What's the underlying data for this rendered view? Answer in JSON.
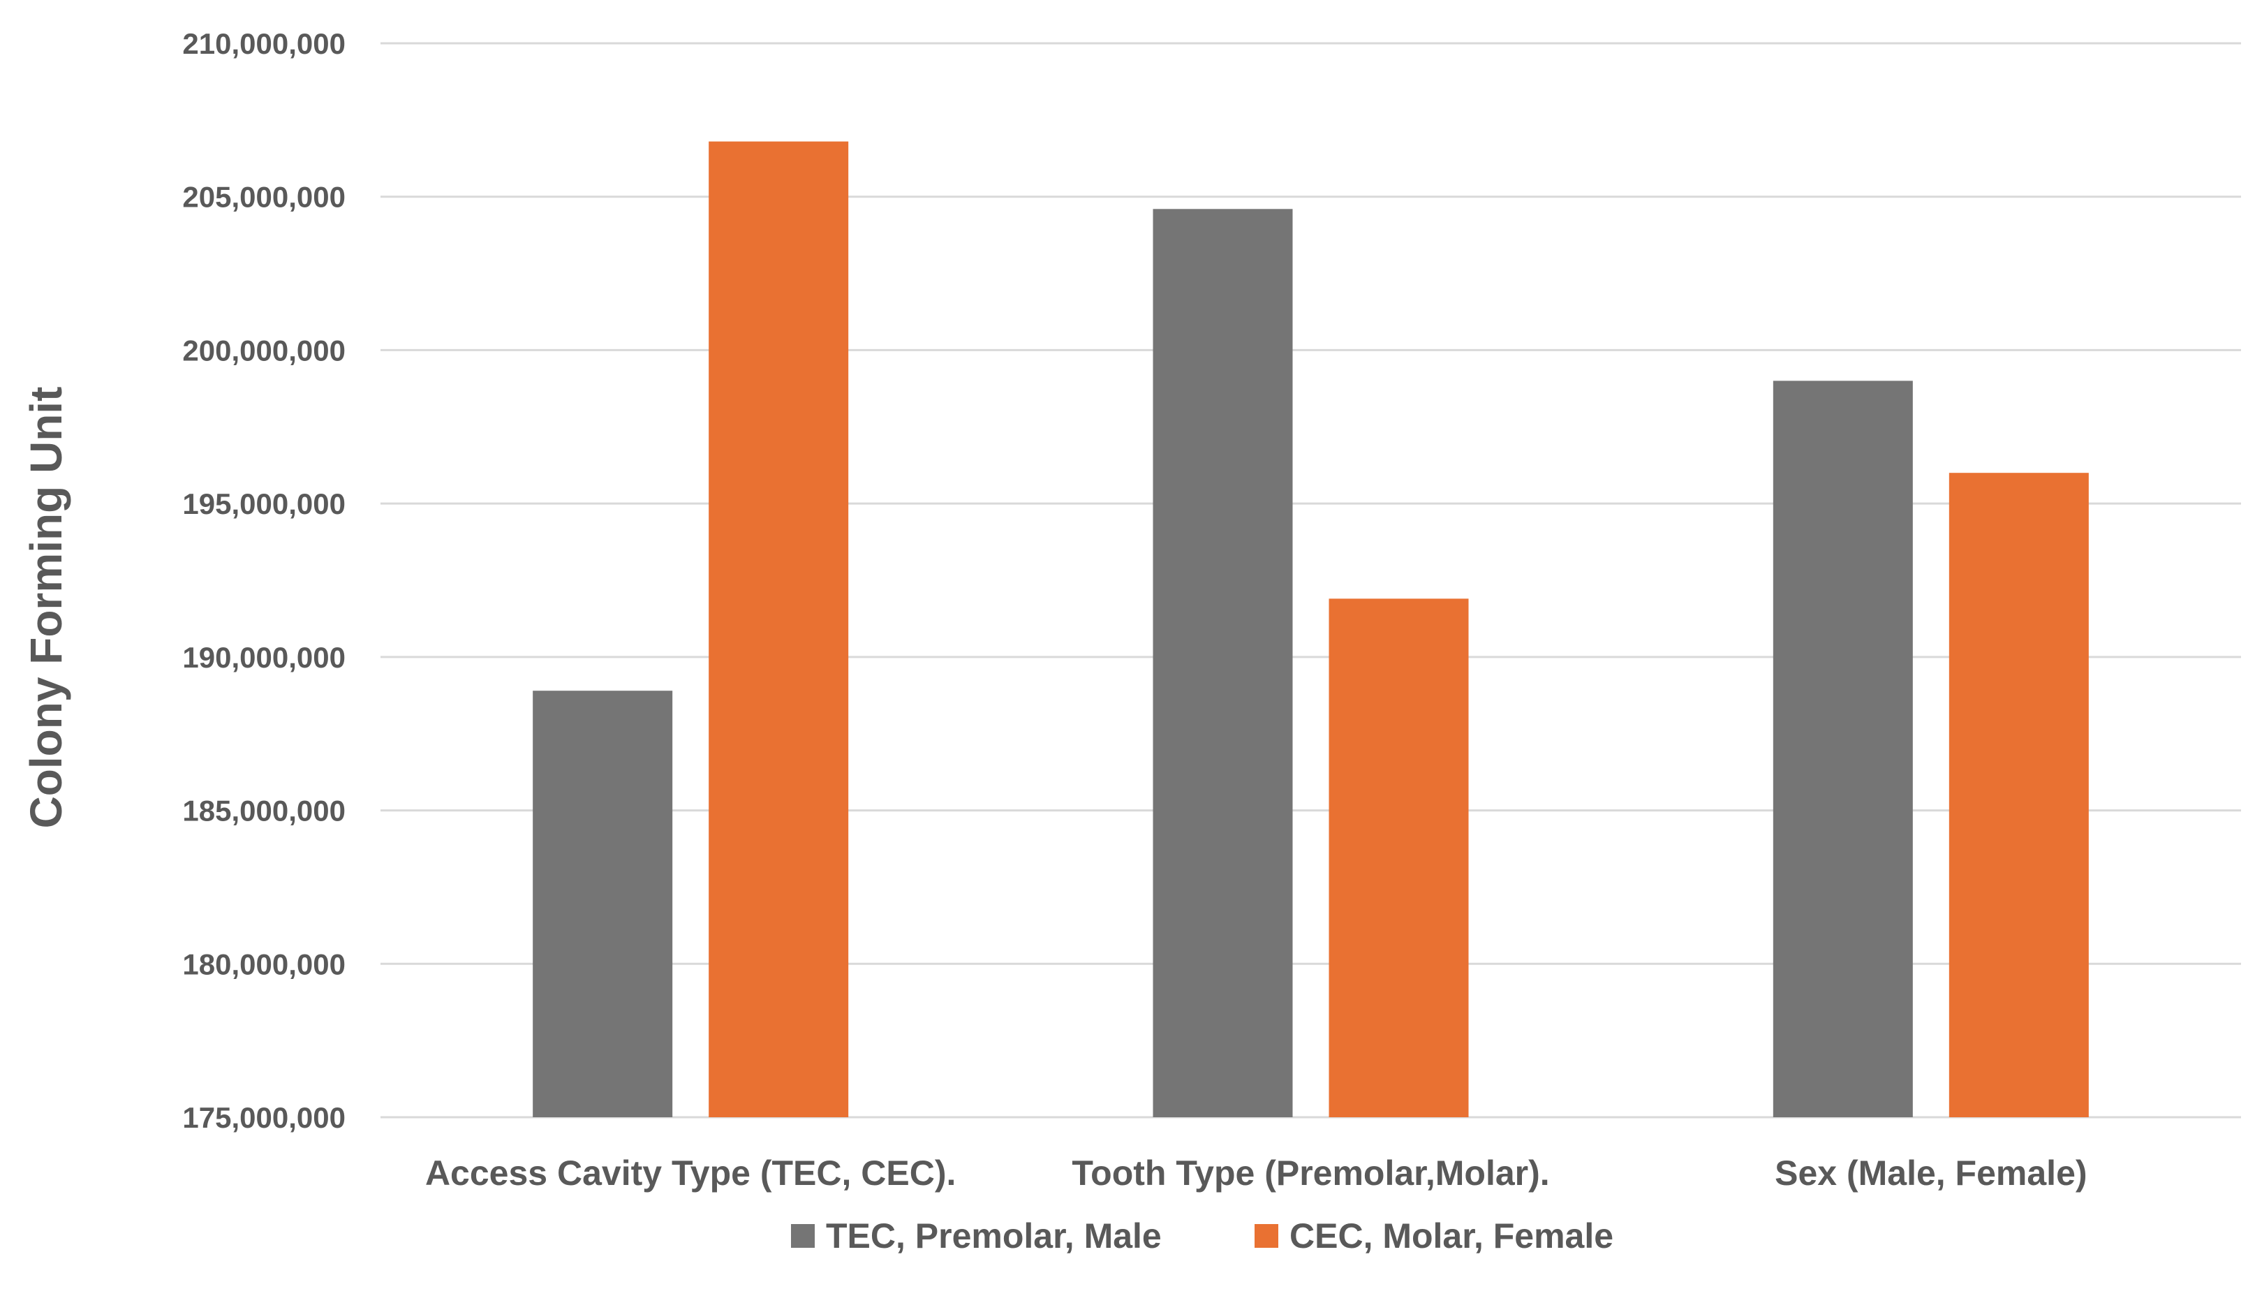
{
  "chart_data": {
    "type": "bar",
    "title": "",
    "xlabel": "",
    "ylabel": "Colony Forming Unit",
    "ylim": [
      175000000,
      210000000
    ],
    "yticks": [
      175000000,
      180000000,
      185000000,
      190000000,
      195000000,
      200000000,
      205000000,
      210000000
    ],
    "ytick_labels": [
      "175,000,000",
      "180,000,000",
      "185,000,000",
      "190,000,000",
      "195,000,000",
      "200,000,000",
      "205,000,000",
      "210,000,000"
    ],
    "categories": [
      "Access Cavity Type (TEC, CEC).",
      "Tooth Type (Premolar,Molar).",
      "Sex (Male, Female)"
    ],
    "series": [
      {
        "name": "TEC, Premolar, Male",
        "color": "#757575",
        "values": [
          188900000,
          204600000,
          199000000
        ]
      },
      {
        "name": "CEC, Molar, Female",
        "color": "#e97132",
        "values": [
          206800000,
          191900000,
          196000000
        ]
      }
    ],
    "grid": true,
    "legend": "bottom"
  }
}
